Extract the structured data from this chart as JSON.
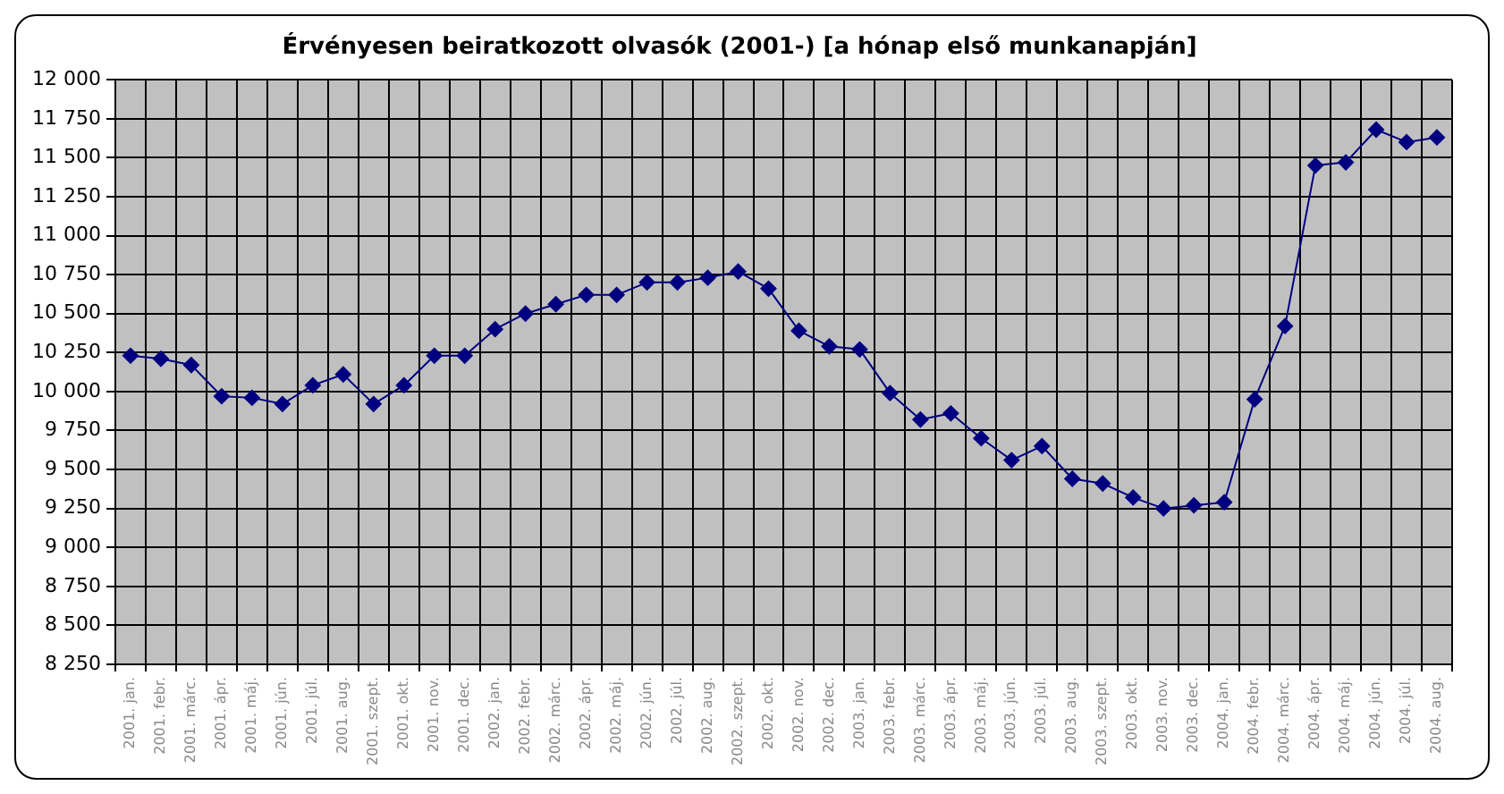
{
  "chart_data": {
    "type": "line",
    "title": "Érvényesen beiratkozott olvasók (2001-) [a hónap első munkanapján]",
    "categories": [
      "2001. jan.",
      "2001. febr.",
      "2001. márc.",
      "2001. ápr.",
      "2001. máj.",
      "2001. jún.",
      "2001. júl.",
      "2001. aug.",
      "2001. szept.",
      "2001. okt.",
      "2001. nov.",
      "2001. dec.",
      "2002. jan.",
      "2002. febr.",
      "2002. márc.",
      "2002. ápr.",
      "2002. máj.",
      "2002. jún.",
      "2002. júl.",
      "2002. aug.",
      "2002. szept.",
      "2002. okt.",
      "2002. nov.",
      "2002. dec.",
      "2003. jan.",
      "2003. febr.",
      "2003. márc.",
      "2003. ápr.",
      "2003. máj.",
      "2003. jún.",
      "2003. júl.",
      "2003. aug.",
      "2003. szept.",
      "2003. okt.",
      "2003. nov.",
      "2003. dec.",
      "2004. jan.",
      "2004. febr.",
      "2004. márc.",
      "2004. ápr.",
      "2004. máj.",
      "2004. jún.",
      "2004. júl.",
      "2004. aug."
    ],
    "series": [
      {
        "color": "#000080",
        "values": [
          10230,
          10210,
          10170,
          9970,
          9960,
          9920,
          10040,
          10110,
          9920,
          10040,
          10230,
          10230,
          10400,
          10500,
          10560,
          10620,
          10620,
          10700,
          10700,
          10730,
          10770,
          10660,
          10390,
          10290,
          10270,
          9990,
          9820,
          9860,
          9700,
          9560,
          9650,
          9440,
          9410,
          9320,
          9250,
          9270,
          9290,
          9950,
          10420,
          11450,
          11470,
          11680,
          11600,
          11630
        ]
      }
    ],
    "ylim": [
      8250,
      12000
    ],
    "yticks": [
      {
        "value": 8250,
        "label": "8 250"
      },
      {
        "value": 8500,
        "label": "8 500"
      },
      {
        "value": 8750,
        "label": "8 750"
      },
      {
        "value": 9000,
        "label": "9 000"
      },
      {
        "value": 9250,
        "label": "9 250"
      },
      {
        "value": 9500,
        "label": "9 500"
      },
      {
        "value": 9750,
        "label": "9 750"
      },
      {
        "value": 10000,
        "label": "10 000"
      },
      {
        "value": 10250,
        "label": "10 250"
      },
      {
        "value": 10500,
        "label": "10 500"
      },
      {
        "value": 10750,
        "label": "10 750"
      },
      {
        "value": 11000,
        "label": "11 000"
      },
      {
        "value": 11250,
        "label": "11 250"
      },
      {
        "value": 11500,
        "label": "11 500"
      },
      {
        "value": 11750,
        "label": "11 750"
      },
      {
        "value": 12000,
        "label": "12 000"
      }
    ],
    "grid": true,
    "legend": false,
    "marker": "diamond",
    "line_style": "solid"
  }
}
